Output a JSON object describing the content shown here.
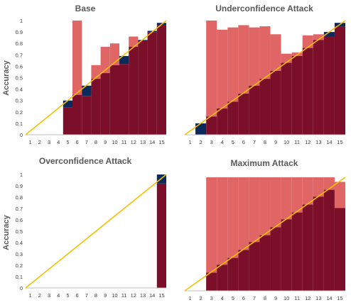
{
  "colors": {
    "accuracy": "#7b0f2a",
    "gap": "#e06666",
    "overshoot": "#0b2a5c",
    "diagonal": "#f5c000",
    "axis": "#bfbfbf"
  },
  "chart_data": [
    {
      "type": "bar",
      "title": "Base",
      "ylabel": "Accuracy",
      "categories": [
        "1",
        "2",
        "3",
        "4",
        "5",
        "6",
        "7",
        "8",
        "9",
        "10",
        "11",
        "12",
        "13",
        "14",
        "15"
      ],
      "y_ticks": [
        "0",
        "0.1",
        "0.2",
        "0.3",
        "0.4",
        "0.5",
        "0.6",
        "0.7",
        "0.8",
        "0.9",
        "1"
      ],
      "ylim": [
        0,
        1
      ],
      "series": [
        {
          "name": "",
          "role": "accuracy",
          "values": [
            0,
            0,
            0,
            0,
            0.3,
            0.35,
            0.43,
            0.49,
            0.54,
            0.61,
            0.69,
            0.77,
            0.83,
            0.91,
            0.98
          ]
        },
        {
          "name": "",
          "role": "confidence",
          "values": [
            0,
            0,
            0,
            0,
            0.24,
            1.0,
            0.34,
            0.61,
            0.77,
            0.8,
            0.62,
            0.86,
            0.82,
            0.9,
            0.96
          ]
        }
      ],
      "diagonal": true,
      "grid": false
    },
    {
      "type": "bar",
      "title": "Underconfidence Attack",
      "ylabel": "",
      "categories": [
        "1",
        "2",
        "3",
        "4",
        "5",
        "6",
        "7",
        "8",
        "9",
        "10",
        "11",
        "12",
        "13",
        "14",
        "15"
      ],
      "y_ticks": [],
      "ylim": [
        0,
        1
      ],
      "series": [
        {
          "name": "",
          "role": "accuracy",
          "values": [
            0,
            0.1,
            0.16,
            0.23,
            0.29,
            0.36,
            0.43,
            0.49,
            0.56,
            0.63,
            0.69,
            0.76,
            0.83,
            0.9,
            0.98
          ]
        },
        {
          "name": "",
          "role": "confidence",
          "values": [
            0,
            0.0,
            1.0,
            0.92,
            0.94,
            0.96,
            0.94,
            0.95,
            0.88,
            0.71,
            0.72,
            0.87,
            0.88,
            0.86,
            0.95
          ]
        }
      ],
      "diagonal": true,
      "grid": false
    },
    {
      "type": "bar",
      "title": "Overconfidence Attack",
      "ylabel": "Accuracy",
      "categories": [
        "1",
        "2",
        "3",
        "4",
        "5",
        "6",
        "7",
        "8",
        "9",
        "10",
        "11",
        "12",
        "13",
        "14",
        "15"
      ],
      "y_ticks": [
        "0",
        "0.1",
        "0.2",
        "0.3",
        "0.4",
        "0.5",
        "0.6",
        "0.7",
        "0.8",
        "0.9",
        "1"
      ],
      "ylim": [
        0,
        1
      ],
      "series": [
        {
          "name": "",
          "role": "accuracy",
          "values": [
            0,
            0,
            0,
            0,
            0,
            0,
            0,
            0,
            0,
            0,
            0,
            0,
            0,
            0,
            1.0
          ]
        },
        {
          "name": "",
          "role": "confidence",
          "values": [
            0,
            0,
            0,
            0,
            0,
            0,
            0,
            0,
            0,
            0,
            0,
            0,
            0,
            0,
            0.92
          ]
        }
      ],
      "diagonal": true,
      "grid": false
    },
    {
      "type": "bar",
      "title": "Maximum Attack",
      "ylabel": "",
      "categories": [
        "1",
        "2",
        "3",
        "4",
        "5",
        "6",
        "7",
        "8",
        "9",
        "10",
        "11",
        "12",
        "13",
        "14",
        "15"
      ],
      "y_ticks": [],
      "ylim": [
        0,
        1
      ],
      "series": [
        {
          "name": "",
          "role": "accuracy",
          "values": [
            0,
            0,
            0.16,
            0.23,
            0.29,
            0.36,
            0.43,
            0.49,
            0.56,
            0.63,
            0.69,
            0.76,
            0.83,
            0.89,
            0.73
          ]
        },
        {
          "name": "",
          "role": "confidence",
          "values": [
            0,
            0,
            1.0,
            1.0,
            1.0,
            1.0,
            1.0,
            1.0,
            1.0,
            1.0,
            1.0,
            1.0,
            1.0,
            1.0,
            0.96
          ]
        }
      ],
      "diagonal": true,
      "grid": false
    }
  ]
}
